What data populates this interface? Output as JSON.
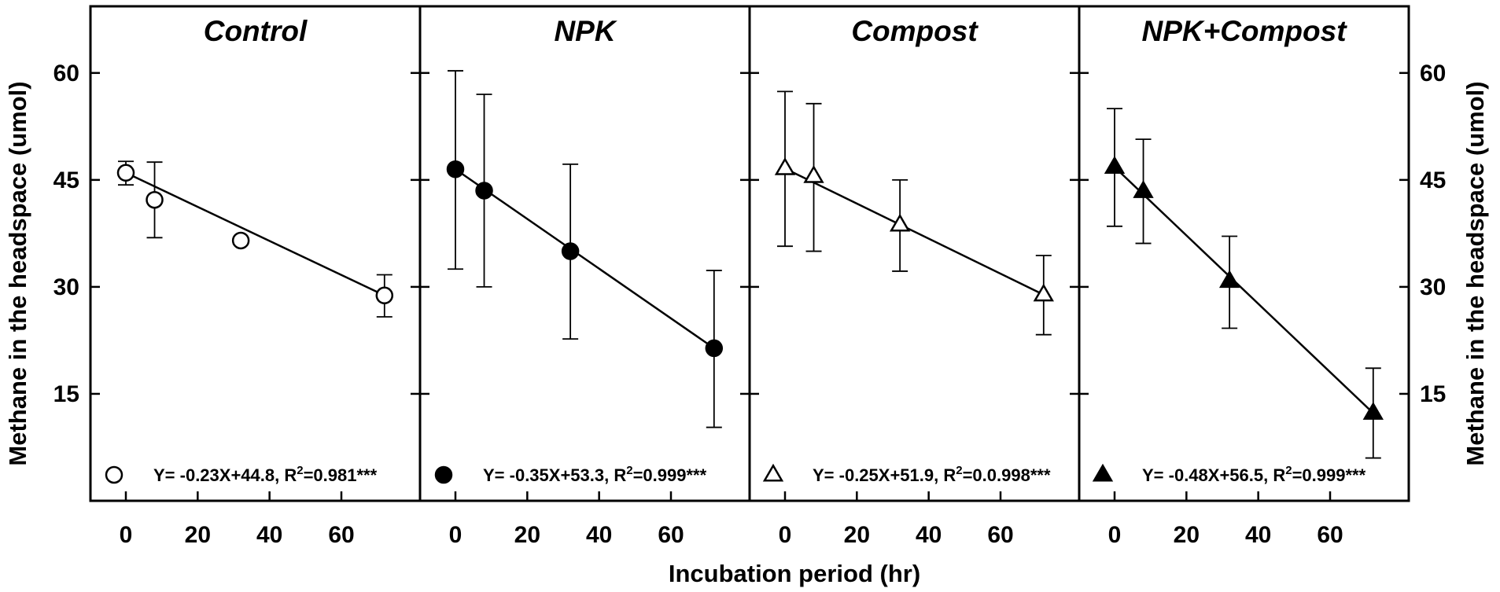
{
  "chart_data": [
    {
      "type": "line",
      "title": "Control",
      "marker": "circle",
      "marker_fill": "#ffffff",
      "x": [
        0,
        8,
        32,
        72
      ],
      "y": [
        46.0,
        42.2,
        36.5,
        28.8
      ],
      "err_low": [
        44.3,
        36.9,
        36.5,
        25.8
      ],
      "err_high": [
        47.6,
        47.5,
        36.5,
        31.7
      ],
      "fit": {
        "slope": -0.23,
        "intercept": 44.8
      },
      "equation": "Y= -0.23X+44.8, R",
      "r2": "=0.981***",
      "xlim": [
        -10,
        84
      ],
      "ylim": [
        0,
        70
      ],
      "xticks": [
        0,
        20,
        40,
        60
      ],
      "yticks": [
        15,
        30,
        45,
        60
      ]
    },
    {
      "type": "line",
      "title": "NPK",
      "marker": "circle",
      "marker_fill": "#000000",
      "x": [
        0,
        8,
        32,
        72
      ],
      "y": [
        46.5,
        43.5,
        35.0,
        21.4
      ],
      "err_low": [
        32.5,
        30.0,
        22.7,
        10.3
      ],
      "err_high": [
        60.3,
        57.0,
        47.2,
        32.3
      ],
      "fit": {
        "slope": -0.35,
        "intercept": 53.3
      },
      "equation": "Y= -0.35X+53.3, R",
      "r2": "=0.999***",
      "xlim": [
        -10,
        84
      ],
      "ylim": [
        0,
        70
      ],
      "xticks": [
        0,
        20,
        40,
        60
      ],
      "yticks": [
        15,
        30,
        45,
        60
      ]
    },
    {
      "type": "line",
      "title": "Compost",
      "marker": "triangle",
      "marker_fill": "#ffffff",
      "x": [
        0,
        8,
        32,
        72
      ],
      "y": [
        46.6,
        45.5,
        38.7,
        28.9
      ],
      "err_low": [
        35.7,
        35.0,
        32.2,
        23.3
      ],
      "err_high": [
        57.4,
        55.7,
        45.0,
        34.4
      ],
      "fit": {
        "slope": -0.25,
        "intercept": 51.9
      },
      "equation": "Y= -0.25X+51.9, R",
      "r2": "=0.0.998***",
      "xlim": [
        -10,
        84
      ],
      "ylim": [
        0,
        70
      ],
      "xticks": [
        0,
        20,
        40,
        60
      ],
      "yticks": [
        15,
        30,
        45,
        60
      ]
    },
    {
      "type": "line",
      "title": "NPK+Compost",
      "marker": "triangle",
      "marker_fill": "#000000",
      "x": [
        0,
        8,
        32,
        72
      ],
      "y": [
        46.8,
        43.4,
        30.8,
        12.3
      ],
      "err_low": [
        38.5,
        36.1,
        24.2,
        6.0
      ],
      "err_high": [
        55.0,
        50.7,
        37.1,
        18.6
      ],
      "fit": {
        "slope": -0.48,
        "intercept": 56.5
      },
      "equation": "Y= -0.48X+56.5, R",
      "r2": "=0.999***",
      "xlim": [
        -10,
        84
      ],
      "ylim": [
        0,
        70
      ],
      "xticks": [
        0,
        20,
        40,
        60
      ],
      "yticks": [
        15,
        30,
        45,
        60
      ]
    }
  ],
  "xlabel": "Incubation period (hr)",
  "ylabel_left": "Methane in the headspace (umol)",
  "ylabel_right": "Methane in the headspace (umol)",
  "r2_superscript": "2"
}
